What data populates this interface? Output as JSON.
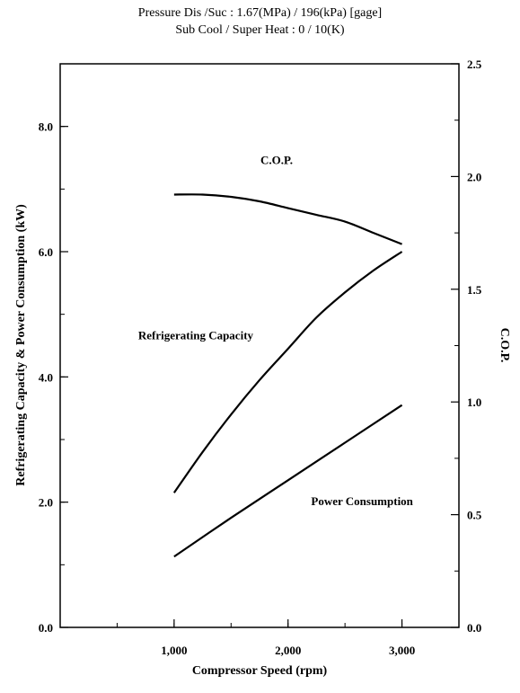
{
  "header": {
    "line1": "Pressure Dis /Suc : 1.67(MPa) / 196(kPa) [gage]",
    "line2": "Sub Cool / Super Heat : 0 / 10(K)"
  },
  "chart_data": {
    "type": "line",
    "xlabel": "Compressor Speed (rpm)",
    "ylabel": "Refrigerating Capacity & Power Consumption (kW)",
    "y2label": "C.O.P.",
    "xlim": [
      0,
      3500
    ],
    "ylim": [
      0,
      9.0
    ],
    "y2lim": [
      0,
      2.5
    ],
    "x_ticks": [
      {
        "value": 1000,
        "label": "1,000"
      },
      {
        "value": 2000,
        "label": "2,000"
      },
      {
        "value": 3000,
        "label": "3,000"
      }
    ],
    "y_ticks": [
      {
        "value": 0,
        "label": "0.0"
      },
      {
        "value": 2,
        "label": "2.0"
      },
      {
        "value": 4,
        "label": "4.0"
      },
      {
        "value": 6,
        "label": "6.0"
      },
      {
        "value": 8,
        "label": "8.0"
      }
    ],
    "y2_ticks": [
      {
        "value": 0,
        "label": "0.0"
      },
      {
        "value": 0.5,
        "label": "0.5"
      },
      {
        "value": 1.0,
        "label": "1.0"
      },
      {
        "value": 1.5,
        "label": "1.5"
      },
      {
        "value": 2.0,
        "label": "2.0"
      },
      {
        "value": 2.5,
        "label": "2.5"
      }
    ],
    "grid": false,
    "series": [
      {
        "name": "C.O.P.",
        "axis": "right",
        "x": [
          1000,
          1250,
          1500,
          1750,
          2000,
          2250,
          2500,
          2750,
          3000
        ],
        "y": [
          1.92,
          1.92,
          1.91,
          1.89,
          1.86,
          1.83,
          1.8,
          1.75,
          1.7
        ]
      },
      {
        "name": "Refrigerating Capacity",
        "axis": "left",
        "x": [
          1000,
          1250,
          1500,
          1750,
          2000,
          2250,
          2500,
          2750,
          3000
        ],
        "y": [
          2.15,
          2.8,
          3.4,
          3.95,
          4.45,
          4.95,
          5.35,
          5.7,
          6.0
        ]
      },
      {
        "name": "Power Consumption",
        "axis": "left",
        "x": [
          1000,
          1500,
          2000,
          2500,
          3000
        ],
        "y": [
          1.13,
          1.75,
          2.35,
          2.95,
          3.55
        ]
      }
    ]
  }
}
